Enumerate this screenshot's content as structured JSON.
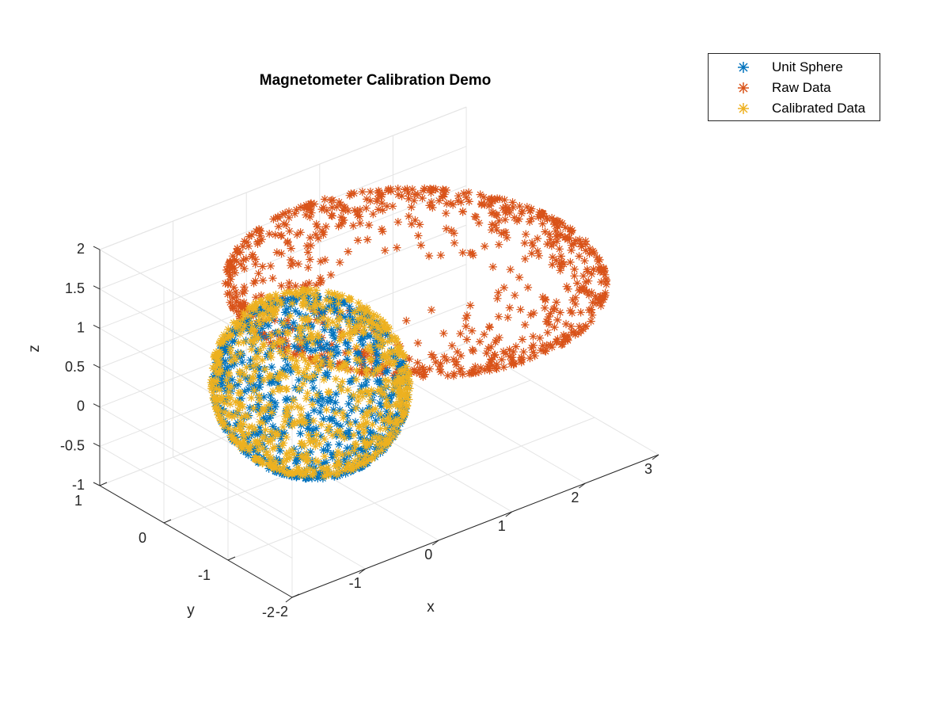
{
  "chart_data": {
    "type": "scatter",
    "title": "Magnetometer Calibration Demo",
    "xlabel": "x",
    "ylabel": "y",
    "zlabel": "z",
    "xlim": [
      -2,
      3
    ],
    "ylim": [
      -2,
      1
    ],
    "zlim": [
      -1,
      2
    ],
    "x_ticks": [
      -2,
      -1,
      0,
      1,
      2,
      3
    ],
    "y_ticks": [
      -2,
      -1,
      0,
      1
    ],
    "z_ticks": [
      -1,
      -0.5,
      0,
      0.5,
      1,
      1.5,
      2
    ],
    "x_tick_labels": [
      "-2",
      "-1",
      "0",
      "1",
      "2",
      "3"
    ],
    "y_tick_labels": [
      "-2",
      "-1",
      "0",
      "1"
    ],
    "z_tick_labels": [
      "-1",
      "-0.5",
      "0",
      "0.5",
      "1",
      "1.5",
      "2"
    ],
    "grid": true,
    "legend_position": "top-right outside",
    "marker": "asterisk",
    "series": [
      {
        "name": "Unit Sphere",
        "color": "#0072BD",
        "shape": "sphere",
        "center": [
          0,
          0,
          0
        ],
        "radius": 1,
        "points": 800
      },
      {
        "name": "Raw Data",
        "color": "#D95319",
        "shape": "ellipsoid-ring",
        "center": [
          1,
          -0.5,
          1.2
        ],
        "semi_axes": [
          2.0,
          1.9,
          0.6
        ],
        "points": 800
      },
      {
        "name": "Calibrated Data",
        "color": "#EDB120",
        "shape": "sphere",
        "center": [
          0,
          0,
          0.05
        ],
        "radius": 1.02,
        "points": 800
      }
    ]
  }
}
